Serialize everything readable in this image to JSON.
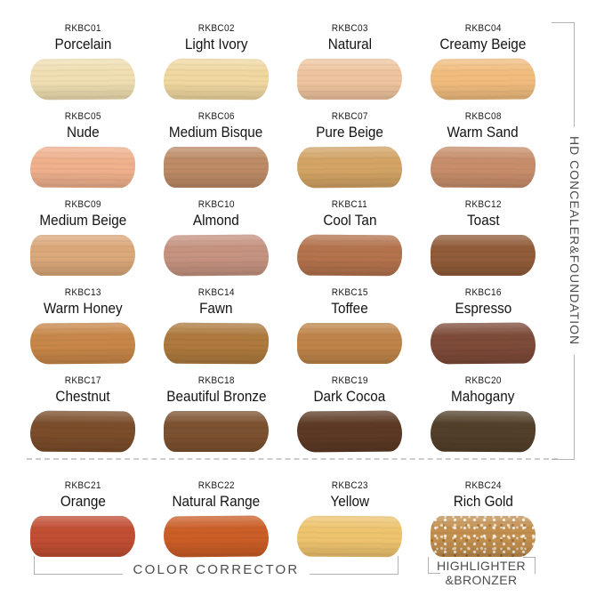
{
  "page": {
    "background": "#ffffff"
  },
  "groups": {
    "concealer_foundation": {
      "label": "HD CONCEALER&FOUNDATION"
    },
    "color_corrector": {
      "label": "COLOR CORRECTOR"
    },
    "highlighter_bronzer": {
      "label_line1": "HIGHLIGHTER",
      "label_line2": "&BRONZER"
    }
  },
  "colors": {
    "bracket_line": "#b3b3b3",
    "group_text": "#4d4d4d",
    "shade_text": "#141414",
    "divider_dash": "#cccccc"
  },
  "swatches": [
    {
      "code": "RKBC01",
      "name": "Porcelain",
      "color": "#F0DFB2",
      "group": "hd-concealer-foundation"
    },
    {
      "code": "RKBC02",
      "name": "Light Ivory",
      "color": "#F1D8A1",
      "group": "hd-concealer-foundation"
    },
    {
      "code": "RKBC03",
      "name": "Natural",
      "color": "#EFC59F",
      "group": "hd-concealer-foundation"
    },
    {
      "code": "RKBC04",
      "name": "Creamy Beige",
      "color": "#F1BD7E",
      "group": "hd-concealer-foundation"
    },
    {
      "code": "RKBC05",
      "name": "Nude",
      "color": "#F0B18D",
      "group": "hd-concealer-foundation"
    },
    {
      "code": "RKBC06",
      "name": "Medium Bisque",
      "color": "#BD8B66",
      "group": "hd-concealer-foundation"
    },
    {
      "code": "RKBC07",
      "name": "Pure Beige",
      "color": "#D3A465",
      "group": "hd-concealer-foundation"
    },
    {
      "code": "RKBC08",
      "name": "Warm Sand",
      "color": "#C88E6B",
      "group": "hd-concealer-foundation"
    },
    {
      "code": "RKBC09",
      "name": "Medium Beige",
      "color": "#DBA87A",
      "group": "hd-concealer-foundation"
    },
    {
      "code": "RKBC10",
      "name": "Almond",
      "color": "#C69380",
      "group": "hd-concealer-foundation"
    },
    {
      "code": "RKBC11",
      "name": "Cool Tan",
      "color": "#B4734D",
      "group": "hd-concealer-foundation"
    },
    {
      "code": "RKBC12",
      "name": "Toast",
      "color": "#915C39",
      "group": "hd-concealer-foundation"
    },
    {
      "code": "RKBC13",
      "name": "Warm Honey",
      "color": "#C88748",
      "group": "hd-concealer-foundation"
    },
    {
      "code": "RKBC14",
      "name": "Fawn",
      "color": "#AE7A3E",
      "group": "hd-concealer-foundation"
    },
    {
      "code": "RKBC15",
      "name": "Toffee",
      "color": "#BF8449",
      "group": "hd-concealer-foundation"
    },
    {
      "code": "RKBC16",
      "name": "Espresso",
      "color": "#7E4B39",
      "group": "hd-concealer-foundation"
    },
    {
      "code": "RKBC17",
      "name": "Chestnut",
      "color": "#7B4D2A",
      "group": "hd-concealer-foundation"
    },
    {
      "code": "RKBC18",
      "name": "Beautiful Bronze",
      "color": "#7D5230",
      "group": "hd-concealer-foundation"
    },
    {
      "code": "RKBC19",
      "name": "Dark Cocoa",
      "color": "#5D3A25",
      "group": "hd-concealer-foundation"
    },
    {
      "code": "RKBC20",
      "name": "Mahogany",
      "color": "#53402A",
      "group": "hd-concealer-foundation"
    },
    {
      "code": "RKBC21",
      "name": "Orange",
      "color": "#C24E33",
      "group": "color-corrector"
    },
    {
      "code": "RKBC22",
      "name": "Natural Range",
      "color": "#CC5E27",
      "group": "color-corrector"
    },
    {
      "code": "RKBC23",
      "name": "Yellow",
      "color": "#EFC46F",
      "group": "color-corrector"
    },
    {
      "code": "RKBC24",
      "name": "Rich Gold",
      "color": "#C28F4E",
      "group": "highlighter-bronzer",
      "finish": "shimmer"
    }
  ]
}
